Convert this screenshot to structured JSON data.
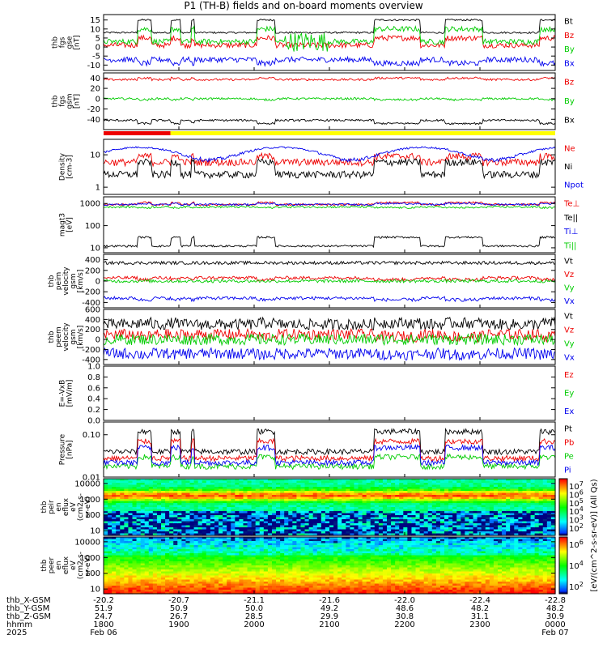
{
  "title": "P1 (TH-B) fields and on-board moments overview",
  "colors": {
    "black": "#000000",
    "red": "#ee0000",
    "green": "#00cc00",
    "blue": "#0000ee",
    "yellow": "#ffff00"
  },
  "chart_data": {
    "type": "line",
    "time_axis": {
      "ticks": [
        "1800",
        "1900",
        "2000",
        "2100",
        "2200",
        "2300",
        "0000"
      ],
      "row_labels": [
        "thb_X-GSM",
        "thb_Y-GSM",
        "thb_Z-GSM",
        "hhmm",
        "2025"
      ],
      "x_gsm": [
        "-20.2",
        "-20.7",
        "-21.1",
        "-21.6",
        "-22.0",
        "-22.4",
        "-22.8"
      ],
      "y_gsm": [
        "51.9",
        "50.9",
        "50.0",
        "49.2",
        "48.6",
        "48.2",
        "48.2"
      ],
      "z_gsm": [
        "24.7",
        "26.7",
        "28.5",
        "29.9",
        "30.8",
        "31.1",
        "30.9"
      ],
      "start_date": "Feb 06",
      "end_date": "Feb 07"
    },
    "mode_bar": [
      {
        "color": "red",
        "from": "1700",
        "to": "1823"
      },
      {
        "color": "yellow",
        "from": "1823",
        "to": "0000"
      }
    ],
    "panels": [
      {
        "id": "fgs_gse",
        "ylabel": [
          "thb",
          "fgs",
          "gse",
          "[nT]"
        ],
        "ylim": [
          -13,
          18
        ],
        "ticks": [
          "15",
          "10",
          "5",
          "0",
          "-5",
          "-10"
        ],
        "series": [
          {
            "name": "Bt",
            "color": "black"
          },
          {
            "name": "Bz",
            "color": "red"
          },
          {
            "name": "By",
            "color": "green"
          },
          {
            "name": "Bx",
            "color": "blue"
          }
        ]
      },
      {
        "id": "fgs_gsm",
        "ylabel": [
          "thb",
          "fgs",
          "gsm",
          "[nT]"
        ],
        "ylim": [
          -60,
          50
        ],
        "ticks": [
          "40",
          "20",
          "0",
          "-20",
          "-40"
        ],
        "series": [
          {
            "name": "Bz",
            "color": "red"
          },
          {
            "name": "By",
            "color": "green"
          },
          {
            "name": "Bx",
            "color": "black"
          }
        ]
      },
      {
        "id": "density",
        "ylabel": [
          "Density",
          "[cm-3]"
        ],
        "log": true,
        "ylim": [
          0.6,
          30
        ],
        "ticks": [
          "10",
          "1"
        ],
        "series": [
          {
            "name": "Ne",
            "color": "red"
          },
          {
            "name": "Ni",
            "color": "black"
          },
          {
            "name": "Npot",
            "color": "blue"
          }
        ]
      },
      {
        "id": "temp",
        "ylabel": [
          "magt3",
          "[eV]"
        ],
        "log": true,
        "ylim": [
          6,
          2000
        ],
        "ticks": [
          "1000",
          "100",
          "10"
        ],
        "series": [
          {
            "name": "Te⊥",
            "color": "red"
          },
          {
            "name": "Te||",
            "color": "black"
          },
          {
            "name": "Ti⊥",
            "color": "blue"
          },
          {
            "name": "Ti||",
            "color": "green"
          }
        ]
      },
      {
        "id": "peim_vel",
        "ylabel": [
          "thb",
          "peim",
          "velocity",
          "gsm",
          "[km/s]"
        ],
        "ylim": [
          -500,
          500
        ],
        "ticks": [
          "400",
          "200",
          "0",
          "-200",
          "-400"
        ],
        "series": [
          {
            "name": "Vt",
            "color": "black"
          },
          {
            "name": "Vz",
            "color": "red"
          },
          {
            "name": "Vy",
            "color": "green"
          },
          {
            "name": "Vx",
            "color": "blue"
          }
        ]
      },
      {
        "id": "peem_vel",
        "ylabel": [
          "thb",
          "peem",
          "velocity",
          "gsm",
          "[km/s]"
        ],
        "ylim": [
          -500,
          600
        ],
        "ticks": [
          "600",
          "400",
          "200",
          "0",
          "-200",
          "-400"
        ],
        "series": [
          {
            "name": "Vt",
            "color": "black"
          },
          {
            "name": "Vz",
            "color": "red"
          },
          {
            "name": "Vy",
            "color": "green"
          },
          {
            "name": "Vx",
            "color": "blue"
          }
        ]
      },
      {
        "id": "efield",
        "ylabel": [
          "E=-VxB",
          "[mV/m]"
        ],
        "ylim": [
          0,
          1
        ],
        "ticks": [
          "1.0",
          "0.8",
          "0.6",
          "0.4",
          "0.2",
          "0.0"
        ],
        "series": [
          {
            "name": "Ez",
            "color": "red"
          },
          {
            "name": "Ey",
            "color": "green"
          },
          {
            "name": "Ex",
            "color": "blue"
          }
        ]
      },
      {
        "id": "pressure",
        "ylabel": [
          "Pressure",
          "[nPa]"
        ],
        "log": true,
        "ylim": [
          0.01,
          0.2
        ],
        "ticks": [
          "0.10",
          "0.01"
        ],
        "series": [
          {
            "name": "Pt",
            "color": "black"
          },
          {
            "name": "Pb",
            "color": "red"
          },
          {
            "name": "Pe",
            "color": "green"
          },
          {
            "name": "Pi",
            "color": "blue"
          }
        ]
      },
      {
        "id": "peir_spec",
        "type": "heatmap",
        "ylabel": [
          "thb",
          "peir",
          "en",
          "eflux",
          "eV",
          "(cm2-s-",
          "sr-eV)"
        ],
        "log": true,
        "ylim": [
          5,
          20000
        ],
        "ticks": [
          "10000",
          "1000",
          "100",
          "10"
        ]
      },
      {
        "id": "peer_spec",
        "type": "heatmap",
        "ylabel": [
          "thb",
          "peer",
          "en",
          "eflux",
          "eV",
          "(cm2-s-",
          "sr-eV)"
        ],
        "log": true,
        "ylim": [
          5,
          20000
        ],
        "ticks": [
          "10000",
          "1000",
          "100",
          "10"
        ]
      }
    ],
    "colorbars": [
      {
        "ticks": [
          "10^7",
          "10^6",
          "10^5",
          "10^4",
          "10^3",
          "10^2"
        ]
      },
      {
        "ticks": [
          "10^6",
          "10^4",
          "10^2"
        ]
      }
    ],
    "colorbar_label": "[eV/(cm^2-s-sr-eV)] (All Qs)"
  }
}
